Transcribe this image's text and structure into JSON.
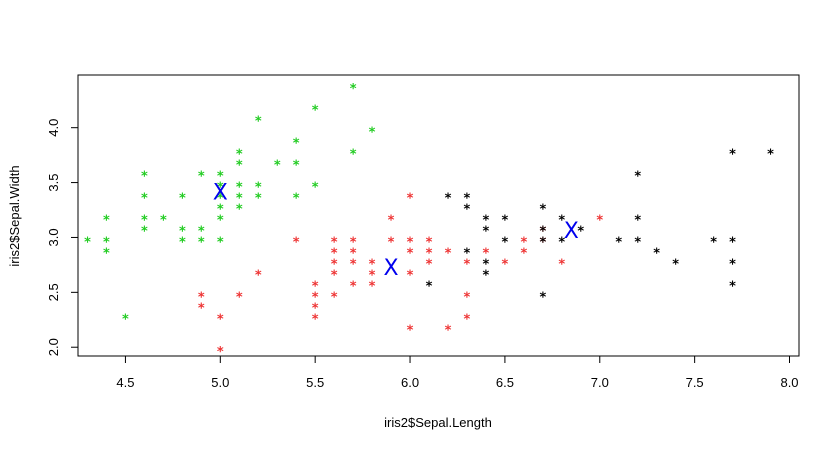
{
  "chart_data": {
    "type": "scatter",
    "xlabel": "iris2$Sepal.Length",
    "ylabel": "iris2$Sepal.Width",
    "xlim": [
      4.25,
      8.05
    ],
    "ylim": [
      1.92,
      4.48
    ],
    "x_ticks": [
      4.5,
      5.0,
      5.5,
      6.0,
      6.5,
      7.0,
      7.5,
      8.0
    ],
    "x_tick_labels": [
      "4.5",
      "5.0",
      "5.5",
      "6.0",
      "6.5",
      "7.0",
      "7.5",
      "8.0"
    ],
    "y_ticks": [
      2.0,
      2.5,
      3.0,
      3.5,
      4.0
    ],
    "y_tick_labels": [
      "2.0",
      "2.5",
      "3.0",
      "3.5",
      "4.0"
    ],
    "grid": false,
    "point_symbol": "*",
    "center_symbol": "X",
    "colors": {
      "cluster_1": "#22cc22",
      "cluster_2": "#ee3333",
      "cluster_3": "#000000",
      "centers": "#0000ee"
    },
    "series": [
      {
        "color": "#22cc22",
        "points": [
          [
            4.3,
            3.0
          ],
          [
            4.4,
            3.2
          ],
          [
            4.4,
            3.0
          ],
          [
            4.4,
            2.9
          ],
          [
            4.5,
            2.3
          ],
          [
            4.6,
            3.4
          ],
          [
            4.6,
            3.2
          ],
          [
            4.6,
            3.1
          ],
          [
            4.6,
            3.6
          ],
          [
            4.7,
            3.2
          ],
          [
            4.8,
            3.4
          ],
          [
            4.8,
            3.1
          ],
          [
            4.8,
            3.0
          ],
          [
            4.9,
            3.6
          ],
          [
            4.9,
            3.1
          ],
          [
            4.9,
            3.0
          ],
          [
            5.0,
            3.6
          ],
          [
            5.0,
            3.5
          ],
          [
            5.0,
            3.4
          ],
          [
            5.0,
            3.3
          ],
          [
            5.0,
            3.2
          ],
          [
            5.0,
            3.0
          ],
          [
            5.1,
            3.8
          ],
          [
            5.1,
            3.7
          ],
          [
            5.1,
            3.5
          ],
          [
            5.1,
            3.4
          ],
          [
            5.1,
            3.3
          ],
          [
            5.2,
            4.1
          ],
          [
            5.2,
            3.5
          ],
          [
            5.2,
            3.4
          ],
          [
            5.3,
            3.7
          ],
          [
            5.4,
            3.9
          ],
          [
            5.4,
            3.7
          ],
          [
            5.4,
            3.4
          ],
          [
            5.5,
            4.2
          ],
          [
            5.5,
            3.5
          ],
          [
            5.7,
            4.4
          ],
          [
            5.7,
            3.8
          ],
          [
            5.8,
            4.0
          ]
        ]
      },
      {
        "color": "#ee3333",
        "points": [
          [
            4.9,
            2.5
          ],
          [
            4.9,
            2.4
          ],
          [
            5.0,
            2.3
          ],
          [
            5.0,
            2.0
          ],
          [
            5.1,
            2.5
          ],
          [
            5.2,
            2.7
          ],
          [
            5.4,
            3.0
          ],
          [
            5.5,
            2.6
          ],
          [
            5.5,
            2.5
          ],
          [
            5.5,
            2.4
          ],
          [
            5.5,
            2.3
          ],
          [
            5.6,
            3.0
          ],
          [
            5.6,
            2.9
          ],
          [
            5.6,
            2.8
          ],
          [
            5.6,
            2.7
          ],
          [
            5.6,
            2.5
          ],
          [
            5.7,
            3.0
          ],
          [
            5.7,
            2.9
          ],
          [
            5.7,
            2.8
          ],
          [
            5.7,
            2.6
          ],
          [
            5.8,
            2.7
          ],
          [
            5.8,
            2.6
          ],
          [
            5.9,
            3.2
          ],
          [
            5.9,
            3.0
          ],
          [
            6.0,
            3.4
          ],
          [
            6.0,
            3.0
          ],
          [
            6.0,
            2.9
          ],
          [
            6.0,
            2.7
          ],
          [
            6.0,
            2.2
          ],
          [
            6.1,
            3.0
          ],
          [
            6.1,
            2.9
          ],
          [
            6.1,
            2.8
          ],
          [
            6.2,
            2.9
          ],
          [
            6.2,
            2.2
          ],
          [
            6.3,
            2.5
          ],
          [
            6.3,
            2.3
          ],
          [
            6.4,
            2.9
          ],
          [
            6.5,
            2.8
          ],
          [
            6.6,
            3.0
          ],
          [
            6.6,
            2.9
          ],
          [
            6.7,
            3.1
          ],
          [
            6.7,
            3.0
          ],
          [
            6.8,
            2.8
          ],
          [
            7.0,
            3.2
          ],
          [
            5.8,
            2.8
          ],
          [
            6.3,
            2.8
          ]
        ]
      },
      {
        "color": "#000000",
        "points": [
          [
            6.1,
            2.6
          ],
          [
            6.2,
            3.4
          ],
          [
            6.3,
            3.4
          ],
          [
            6.3,
            3.3
          ],
          [
            6.3,
            2.9
          ],
          [
            6.4,
            3.2
          ],
          [
            6.4,
            3.1
          ],
          [
            6.4,
            2.8
          ],
          [
            6.4,
            2.7
          ],
          [
            6.5,
            3.2
          ],
          [
            6.5,
            3.0
          ],
          [
            6.7,
            3.3
          ],
          [
            6.7,
            3.1
          ],
          [
            6.7,
            3.0
          ],
          [
            6.7,
            2.5
          ],
          [
            6.8,
            3.2
          ],
          [
            6.8,
            3.0
          ],
          [
            6.9,
            3.1
          ],
          [
            7.1,
            3.0
          ],
          [
            7.2,
            3.6
          ],
          [
            7.2,
            3.2
          ],
          [
            7.2,
            3.0
          ],
          [
            7.3,
            2.9
          ],
          [
            7.4,
            2.8
          ],
          [
            7.6,
            3.0
          ],
          [
            7.7,
            3.8
          ],
          [
            7.7,
            3.0
          ],
          [
            7.7,
            2.8
          ],
          [
            7.7,
            2.6
          ],
          [
            7.9,
            3.8
          ]
        ]
      }
    ],
    "centers": [
      [
        5.0,
        3.42
      ],
      [
        5.9,
        2.73
      ],
      [
        6.85,
        3.07
      ]
    ]
  }
}
